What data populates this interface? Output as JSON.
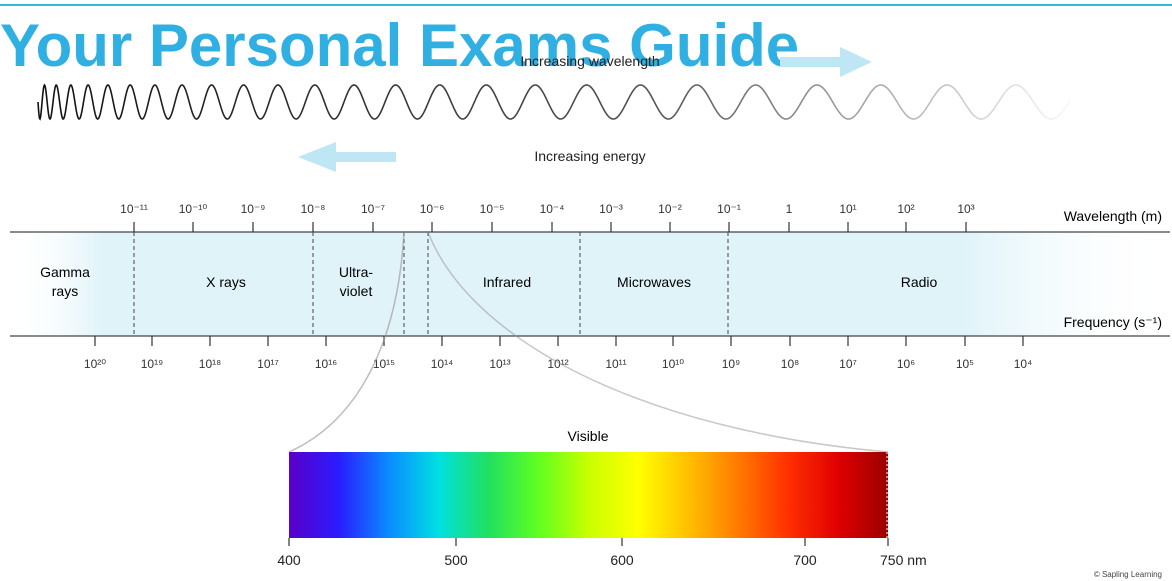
{
  "watermark": {
    "text": "Your Personal Exams Guide",
    "color": "#1aa7df"
  },
  "wave": {
    "wavelength_label": "Increasing wavelength",
    "energy_label": "Increasing energy",
    "arrow_color": "#bfe6f4"
  },
  "scales": {
    "wavelength_axis_label": "Wavelength (m)",
    "frequency_axis_label": "Frequency (s⁻¹)",
    "wavelength_ticks": [
      "10⁻¹¹",
      "10⁻¹⁰",
      "10⁻⁹",
      "10⁻⁸",
      "10⁻⁷",
      "10⁻⁶",
      "10⁻⁵",
      "10⁻⁴",
      "10⁻³",
      "10⁻²",
      "10⁻¹",
      "1",
      "10¹",
      "10²",
      "10³"
    ],
    "frequency_ticks": [
      "10²⁰",
      "10¹⁹",
      "10¹⁸",
      "10¹⁷",
      "10¹⁶",
      "10¹⁵",
      "10¹⁴",
      "10¹³",
      "10¹²",
      "10¹¹",
      "10¹⁰",
      "10⁹",
      "10⁸",
      "10⁷",
      "10⁶",
      "10⁵",
      "10⁴"
    ]
  },
  "regions": [
    {
      "line1": "Gamma",
      "line2": "rays"
    },
    {
      "line1": "X rays",
      "line2": ""
    },
    {
      "line1": "Ultra-",
      "line2": "violet"
    },
    {
      "line1": "Infrared",
      "line2": ""
    },
    {
      "line1": "Microwaves",
      "line2": ""
    },
    {
      "line1": "Radio",
      "line2": ""
    }
  ],
  "visible": {
    "title": "Visible",
    "ticks": [
      "400",
      "500",
      "600",
      "700",
      "750 nm"
    ]
  },
  "colors": {
    "band_fill": "#dff3f9",
    "spectrum": [
      "#5a00c8",
      "#2a1cff",
      "#0a8cff",
      "#00e0e0",
      "#20e060",
      "#60ff20",
      "#c8ff00",
      "#ffff00",
      "#ffc000",
      "#ff7a00",
      "#ff3000",
      "#e00000",
      "#9a0000"
    ]
  },
  "credit": "© Sapling Learning"
}
